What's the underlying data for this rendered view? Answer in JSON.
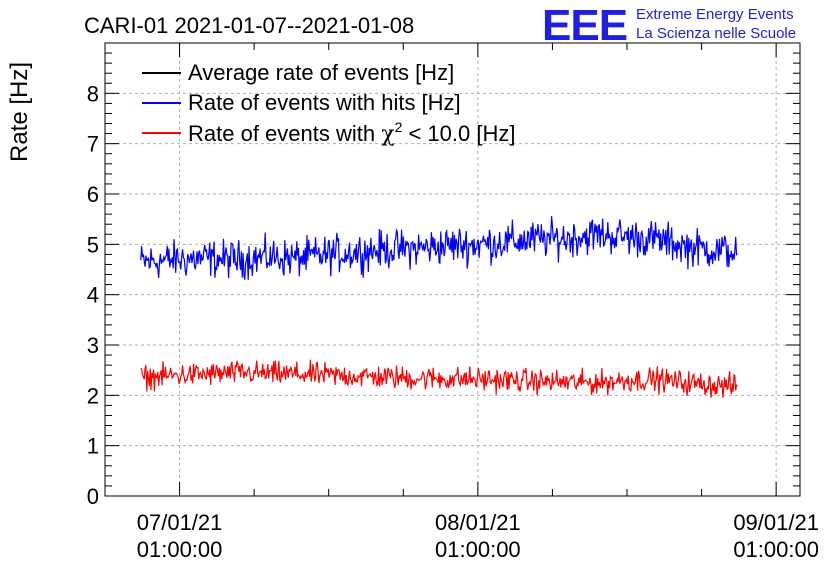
{
  "chart_data": {
    "type": "line",
    "title": "CARI-01 2021-01-07--2021-01-08",
    "ylabel": "Rate [Hz]",
    "xlabel": "",
    "ylim": [
      0,
      9
    ],
    "yticks": [
      "0",
      "1",
      "2",
      "3",
      "4",
      "5",
      "6",
      "7",
      "8"
    ],
    "xlim_days": [
      -0.25,
      2.08
    ],
    "xticks": [
      {
        "day": 0,
        "line1": "07/01/21",
        "line2": "01:00:00"
      },
      {
        "day": 1,
        "line1": "08/01/21",
        "line2": "01:00:00"
      },
      {
        "day": 2,
        "line1": "09/01/21",
        "line2": "01:00:00"
      }
    ],
    "series": [
      {
        "name": "Average rate of events [Hz]",
        "color": "#000000",
        "x_days": [],
        "values": []
      },
      {
        "name": "Rate of events with hits [Hz]",
        "color": "#0000ff",
        "x_days": [
          -0.13,
          0.0,
          0.1,
          0.2,
          0.3,
          0.4,
          0.5,
          0.6,
          0.7,
          0.8,
          0.9,
          1.0,
          1.1,
          1.2,
          1.3,
          1.4,
          1.5,
          1.6,
          1.7,
          1.8,
          1.87
        ],
        "values": [
          4.65,
          4.7,
          4.72,
          4.7,
          4.75,
          4.72,
          4.8,
          4.85,
          4.9,
          4.92,
          4.98,
          5.0,
          5.05,
          5.1,
          5.12,
          5.2,
          5.15,
          5.1,
          4.95,
          4.88,
          4.85
        ],
        "spread": 0.55
      },
      {
        "name": "Rate of events with χ² < 10.0 [Hz]",
        "color": "#ff0000",
        "x_days": [
          -0.13,
          0.0,
          0.1,
          0.2,
          0.3,
          0.4,
          0.5,
          0.6,
          0.7,
          0.8,
          0.9,
          1.0,
          1.1,
          1.2,
          1.3,
          1.4,
          1.5,
          1.6,
          1.7,
          1.8,
          1.87
        ],
        "values": [
          2.35,
          2.4,
          2.42,
          2.45,
          2.43,
          2.42,
          2.4,
          2.38,
          2.36,
          2.34,
          2.33,
          2.32,
          2.3,
          2.28,
          2.26,
          2.25,
          2.3,
          2.32,
          2.25,
          2.2,
          2.18
        ],
        "spread": 0.35
      }
    ],
    "legend": {
      "position": "top-left",
      "entries": [
        {
          "label": "Average rate of events [Hz]",
          "color": "#000000"
        },
        {
          "label": "Rate of events with hits [Hz]",
          "color": "#0000ff"
        },
        {
          "label_prefix": "Rate of events with ",
          "label_symbol": "χ",
          "label_sup": "2",
          "label_suffix": " < 10.0 [Hz]",
          "color": "#ff0000"
        }
      ]
    },
    "grid": true
  },
  "logo": {
    "text": "EEE",
    "line1": "Extreme Energy Events",
    "line2": "La Scienza nelle Scuole",
    "color": "#1f1fe0"
  }
}
